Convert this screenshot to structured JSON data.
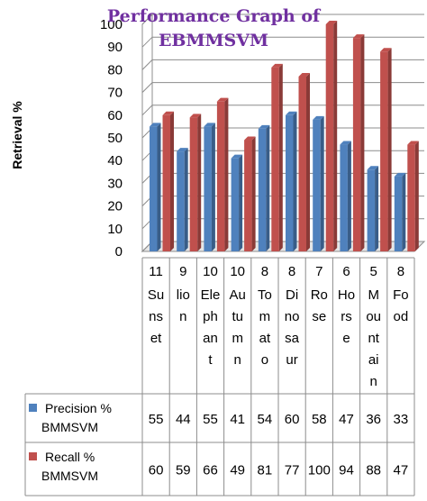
{
  "chart_data": {
    "type": "bar",
    "title": "Performance Graph of EBMMSVM",
    "title_lines": [
      "Performance Graph of",
      "EBMMSVM"
    ],
    "ylabel": "Retrieval %",
    "xlabel": "",
    "ylim": [
      0,
      100
    ],
    "yticks": [
      0,
      10,
      20,
      30,
      40,
      50,
      60,
      70,
      80,
      90,
      100
    ],
    "grid": true,
    "legend": "bottom-left (data table)",
    "categories": [
      {
        "count": "11",
        "lines": [
          "Su",
          "ns",
          "et"
        ]
      },
      {
        "count": "9",
        "lines": [
          "lio",
          "n"
        ]
      },
      {
        "count": "10",
        "lines": [
          "Ele",
          "ph",
          "an",
          "t"
        ]
      },
      {
        "count": "10",
        "lines": [
          "Au",
          "tu",
          "m",
          "n"
        ]
      },
      {
        "count": "8",
        "lines": [
          "To",
          "m",
          "at",
          "o"
        ]
      },
      {
        "count": "8",
        "lines": [
          "Di",
          "no",
          "sa",
          "ur"
        ]
      },
      {
        "count": "7",
        "lines": [
          "Ro",
          "se"
        ]
      },
      {
        "count": "6",
        "lines": [
          "Ho",
          "rs",
          "e"
        ]
      },
      {
        "count": "5",
        "lines": [
          "M",
          "ou",
          "nt",
          "ai",
          "n"
        ]
      },
      {
        "count": "8",
        "lines": [
          "Fo",
          "od"
        ]
      }
    ],
    "series": [
      {
        "name_lines": [
          "Precision %",
          "BMMSVM"
        ],
        "color": "#4f81bd",
        "values": [
          55,
          44,
          55,
          41,
          54,
          60,
          58,
          47,
          36,
          33
        ]
      },
      {
        "name_lines": [
          "Recall %",
          "BMMSVM"
        ],
        "color": "#c0504d",
        "values": [
          60,
          59,
          66,
          49,
          81,
          77,
          100,
          94,
          88,
          47
        ]
      }
    ]
  }
}
